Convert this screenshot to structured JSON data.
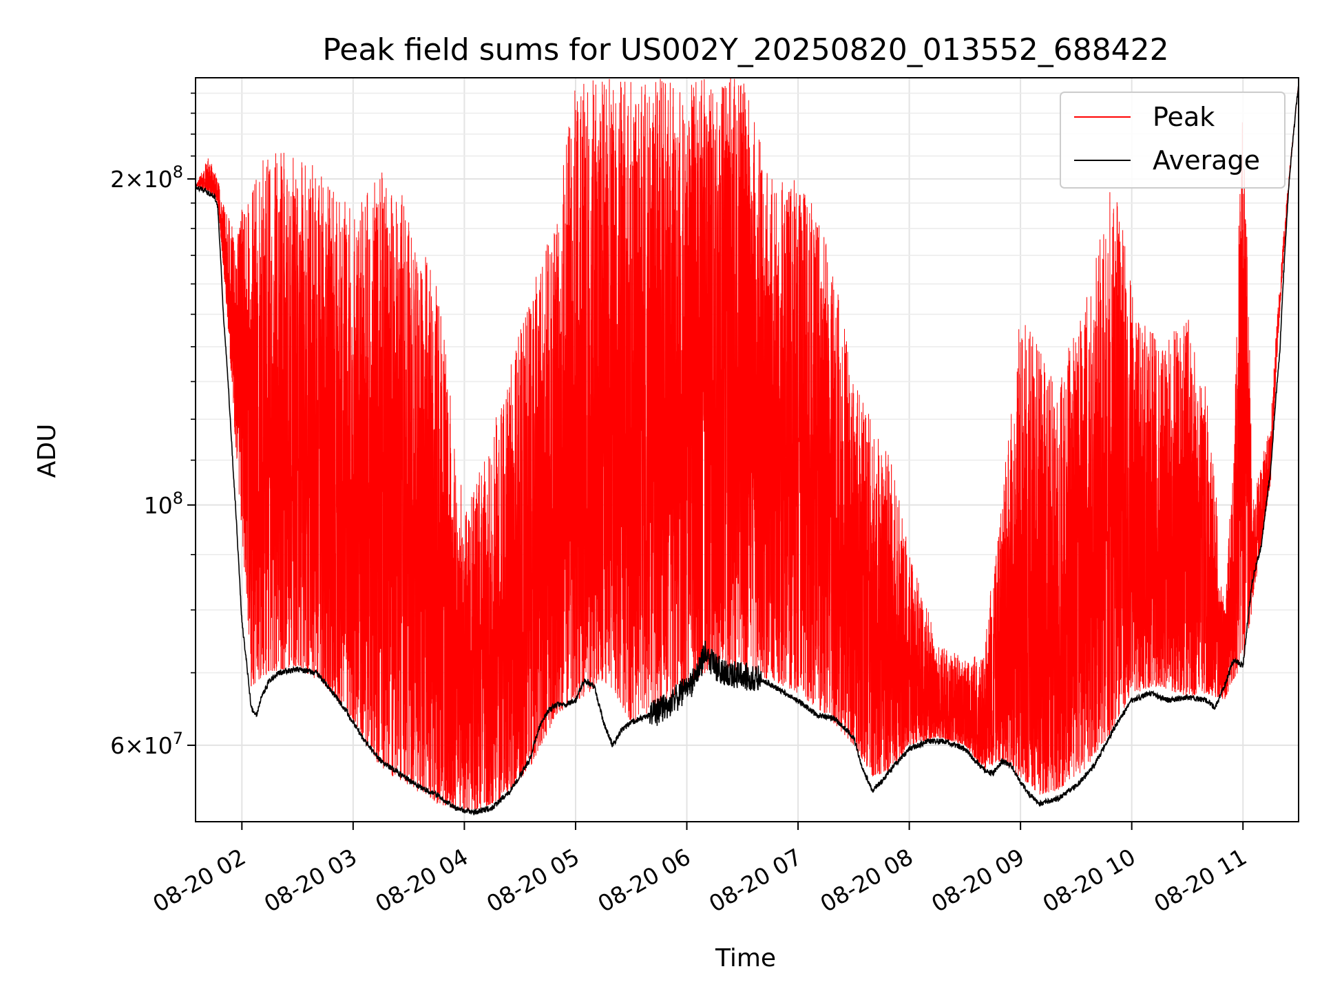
{
  "chart_data": {
    "type": "line",
    "title": "Peak field sums for US002Y_20250820_013552_688422",
    "xlabel": "Time",
    "ylabel": "ADU",
    "yscale": "log",
    "ylim": [
      51000000,
      248000000
    ],
    "xlim": [
      "2025-08-20 01:35",
      "2025-08-20 11:30"
    ],
    "grid": true,
    "legend_position": "top-right",
    "x_tick_labels": [
      "08-20 02",
      "08-20 03",
      "08-20 04",
      "08-20 05",
      "08-20 06",
      "08-20 07",
      "08-20 08",
      "08-20 09",
      "08-20 10",
      "08-20 11"
    ],
    "y_tick_labels": [
      {
        "value": 200000000,
        "mantissa": "2",
        "exponent": "8"
      },
      {
        "value": 100000000,
        "mantissa": "",
        "exponent": "8"
      },
      {
        "value": 60000000,
        "mantissa": "6",
        "exponent": "7"
      }
    ],
    "series": [
      {
        "name": "Peak",
        "color": "#ff0000",
        "x": [
          "01:35",
          "01:42",
          "01:47",
          "01:52",
          "01:57",
          "02:05",
          "02:15",
          "02:30",
          "02:45",
          "03:00",
          "03:15",
          "03:30",
          "03:45",
          "04:00",
          "04:10",
          "04:20",
          "04:35",
          "04:50",
          "05:00",
          "05:05",
          "05:15",
          "05:30",
          "05:45",
          "06:00",
          "06:15",
          "06:30",
          "06:45",
          "07:00",
          "07:15",
          "07:30",
          "07:40",
          "07:50",
          "08:00",
          "08:15",
          "08:30",
          "08:40",
          "08:50",
          "09:00",
          "09:10",
          "09:20",
          "09:35",
          "09:50",
          "10:00",
          "10:15",
          "10:30",
          "10:40",
          "10:50",
          "10:55",
          "11:00",
          "11:05",
          "11:15",
          "11:30"
        ],
        "lower": [
          197000000,
          195000000,
          190000000,
          150000000,
          110000000,
          68000000,
          70000000,
          71000000,
          68000000,
          63000000,
          57000000,
          55000000,
          53000000,
          52000000,
          52500000,
          53500000,
          57000000,
          64000000,
          66000000,
          66500000,
          69000000,
          63000000,
          65000000,
          68000000,
          71000000,
          70000000,
          69000000,
          67000000,
          64000000,
          60000000,
          56000000,
          57000000,
          60000000,
          61000000,
          60000000,
          57000000,
          58000000,
          56000000,
          54000000,
          54500000,
          57000000,
          62000000,
          67000000,
          68000000,
          66500000,
          67000000,
          66000000,
          69000000,
          71000000,
          80000000,
          105000000,
          245000000
        ],
        "upper": [
          197000000,
          210000000,
          200000000,
          185000000,
          180000000,
          200000000,
          215000000,
          215000000,
          200000000,
          190000000,
          205000000,
          190000000,
          160000000,
          98000000,
          110000000,
          125000000,
          155000000,
          190000000,
          248000000,
          248000000,
          248000000,
          248000000,
          248000000,
          248000000,
          248000000,
          248000000,
          200000000,
          200000000,
          180000000,
          130000000,
          120000000,
          110000000,
          90000000,
          75000000,
          72000000,
          73000000,
          100000000,
          150000000,
          140000000,
          130000000,
          155000000,
          200000000,
          160000000,
          140000000,
          150000000,
          130000000,
          80000000,
          110000000,
          245000000,
          100000000,
          120000000,
          245000000
        ]
      },
      {
        "name": "Average",
        "color": "#000000",
        "x": [
          "01:35",
          "01:40",
          "01:45",
          "01:47",
          "01:50",
          "01:55",
          "01:58",
          "02:00",
          "02:05",
          "02:08",
          "02:10",
          "02:15",
          "02:20",
          "02:30",
          "02:40",
          "02:45",
          "02:55",
          "03:05",
          "03:15",
          "03:25",
          "03:35",
          "03:45",
          "03:55",
          "04:05",
          "04:15",
          "04:25",
          "04:35",
          "04:40",
          "04:45",
          "04:50",
          "04:55",
          "05:00",
          "05:05",
          "05:10",
          "05:15",
          "05:20",
          "05:25",
          "05:30",
          "05:35",
          "05:45",
          "05:55",
          "06:05",
          "06:10",
          "06:15",
          "06:20",
          "06:30",
          "06:40",
          "06:50",
          "07:00",
          "07:10",
          "07:20",
          "07:30",
          "07:35",
          "07:40",
          "07:45",
          "07:50",
          "08:00",
          "08:10",
          "08:20",
          "08:30",
          "08:40",
          "08:45",
          "08:50",
          "08:55",
          "09:00",
          "09:05",
          "09:10",
          "09:20",
          "09:30",
          "09:40",
          "09:50",
          "10:00",
          "10:10",
          "10:20",
          "10:30",
          "10:40",
          "10:45",
          "10:50",
          "10:55",
          "11:00",
          "11:05",
          "11:10",
          "11:15",
          "11:20",
          "11:25",
          "11:30"
        ],
        "values": [
          197000000,
          195000000,
          193000000,
          188000000,
          150000000,
          110000000,
          90000000,
          78000000,
          65000000,
          64000000,
          66000000,
          69000000,
          70000000,
          70500000,
          70000000,
          68500000,
          65000000,
          61000000,
          58000000,
          56500000,
          55000000,
          54000000,
          52500000,
          52000000,
          52500000,
          54500000,
          58000000,
          62000000,
          64500000,
          65500000,
          65500000,
          66000000,
          69000000,
          68000000,
          63000000,
          60000000,
          62000000,
          63000000,
          63500000,
          64500000,
          66500000,
          69000000,
          73000000,
          71000000,
          70000000,
          69500000,
          69000000,
          67500000,
          66000000,
          64000000,
          63500000,
          61000000,
          57000000,
          54500000,
          55500000,
          57000000,
          59500000,
          60500000,
          60500000,
          59500000,
          57000000,
          56500000,
          58000000,
          57500000,
          55500000,
          54000000,
          53000000,
          53500000,
          55000000,
          57500000,
          62000000,
          66000000,
          67000000,
          66000000,
          66500000,
          66000000,
          65000000,
          68000000,
          72000000,
          71000000,
          85000000,
          92000000,
          108000000,
          140000000,
          200000000,
          245000000
        ]
      }
    ]
  }
}
